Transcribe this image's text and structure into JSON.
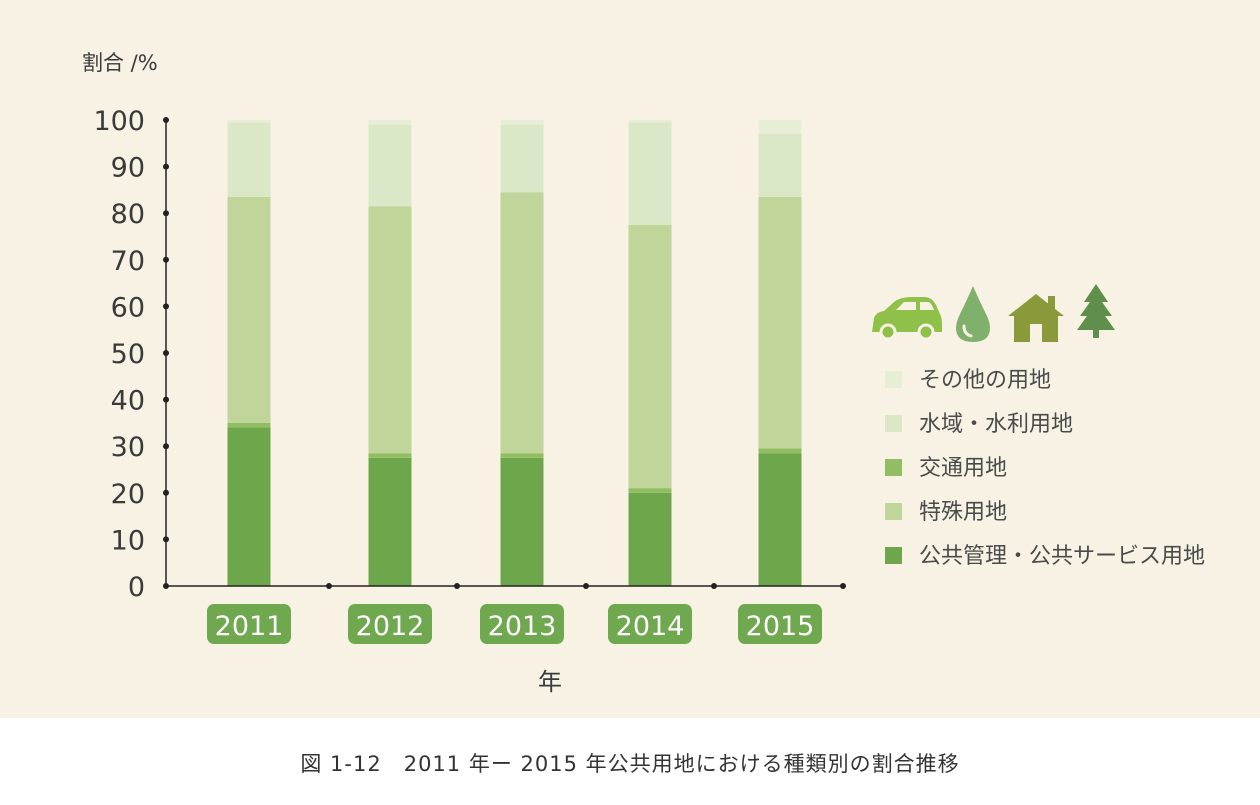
{
  "caption": "図 1-12　2011 年ー 2015 年公共用地における種類別の割合推移",
  "colors": {
    "background": "#f8f2e4",
    "axis": "#222222",
    "year_label_bg": "#6fa84e",
    "public_service": "#6ea64c",
    "special": "#c0d59a",
    "transport": "#91bd63",
    "water": "#dbe8c7",
    "other": "#e6efd6",
    "icon_car": "#8fc04a",
    "icon_drop": "#7fb06c",
    "icon_house": "#8a9a3a",
    "icon_tree": "#5f8f4a"
  },
  "icons": [
    "car-icon",
    "water-drop-icon",
    "house-icon",
    "tree-icon"
  ],
  "chart_data": {
    "type": "bar",
    "stacked": true,
    "ylabel": "割合 /%",
    "xlabel": "年",
    "ylim": [
      0,
      100
    ],
    "yticks": [
      "0",
      "10",
      "20",
      "30",
      "40",
      "50",
      "60",
      "70",
      "80",
      "90",
      "100"
    ],
    "categories": [
      "2011",
      "2012",
      "2013",
      "2014",
      "2015"
    ],
    "series": [
      {
        "name": "公共管理・公共サービス用地",
        "key": "public_service",
        "values": [
          34,
          27.5,
          27.5,
          20,
          28.5
        ]
      },
      {
        "name": "交通用地",
        "key": "transport",
        "values": [
          1,
          1,
          1,
          1,
          1
        ]
      },
      {
        "name": "特殊用地",
        "key": "special",
        "values": [
          48.5,
          53,
          56,
          56.5,
          54
        ]
      },
      {
        "name": "水域・水利用地",
        "key": "water",
        "values": [
          16,
          17.5,
          14.5,
          22,
          13.5
        ]
      },
      {
        "name": "その他の用地",
        "key": "other",
        "values": [
          0.5,
          1,
          1,
          0.5,
          3
        ]
      }
    ],
    "legend": {
      "position": "right",
      "order": [
        "その他の用地",
        "水域・水利用地",
        "交通用地",
        "特殊用地",
        "公共管理・公共サービス用地"
      ]
    },
    "grid": false
  }
}
